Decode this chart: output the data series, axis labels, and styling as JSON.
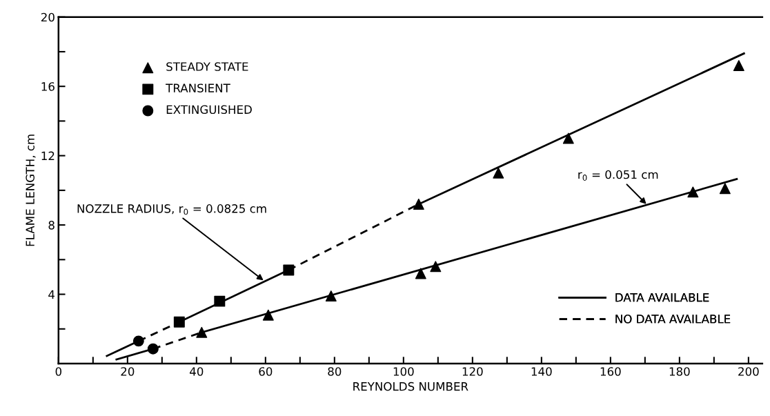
{
  "chart_data": {
    "type": "scatter",
    "xlabel": "REYNOLDS NUMBER",
    "ylabel": "FLAME LENGTH, cm",
    "xlim": [
      0,
      204
    ],
    "ylim": [
      0,
      20
    ],
    "xticks": [
      0,
      {
        "value": 10,
        "label": null
      },
      20,
      {
        "value": 30,
        "label": null
      },
      40,
      {
        "value": 50,
        "label": null
      },
      60,
      {
        "value": 70,
        "label": null
      },
      80,
      {
        "value": 90,
        "label": null
      },
      100,
      {
        "value": 110,
        "label": null
      },
      120,
      {
        "value": 130,
        "label": null
      },
      140,
      {
        "value": 150,
        "label": null
      },
      160,
      {
        "value": 170,
        "label": null
      },
      180,
      {
        "value": 190,
        "label": null
      },
      200
    ],
    "yticks": [
      {
        "value": 2,
        "label": null
      },
      4,
      {
        "value": 6,
        "label": null
      },
      8,
      {
        "value": 10,
        "label": null
      },
      12,
      {
        "value": 14,
        "label": null
      },
      16,
      {
        "value": 18,
        "label": null
      },
      20
    ],
    "grid": false,
    "legend": [
      "top left",
      "bottom right"
    ],
    "series": [
      {
        "name": "STEADY STATE",
        "marker": "triangle",
        "color": "#000000",
        "x": [
          104.4,
          127.5,
          147.8,
          197.2,
          41.5,
          60.8,
          79,
          105,
          109.3,
          183.9,
          193.2
        ],
        "values": [
          9.2,
          11.0,
          13.0,
          17.2,
          1.8,
          2.8,
          3.9,
          5.2,
          5.6,
          9.9,
          10.1
        ]
      },
      {
        "name": "TRANSIENT",
        "marker": "square",
        "color": "#000000",
        "x": [
          35,
          46.7,
          66.7
        ],
        "values": [
          2.4,
          3.6,
          5.4
        ]
      },
      {
        "name": "EXTINGUISHED",
        "marker": "circle",
        "color": "#000000",
        "x": [
          23.2,
          27.4
        ],
        "values": [
          1.3,
          0.85
        ]
      },
      {
        "name": "DATA AVAILABLE",
        "type": "line",
        "line_style": "solid",
        "color": "#000000",
        "x": [
          14,
          23.2
        ],
        "values": [
          0.44,
          1.3
        ]
      },
      {
        "type": "line",
        "line_style": "dashed",
        "color": "#000000",
        "x": [
          23.2,
          35
        ],
        "values": [
          1.3,
          2.4
        ]
      },
      {
        "type": "line",
        "line_style": "solid",
        "color": "#000000",
        "x": [
          35,
          66.7
        ],
        "values": [
          2.4,
          5.4
        ]
      },
      {
        "name": "NO DATA AVAILABLE",
        "type": "line",
        "line_style": "dashed",
        "color": "#000000",
        "x": [
          66.7,
          104.4
        ],
        "values": [
          5.4,
          9.2
        ]
      },
      {
        "type": "line",
        "line_style": "solid",
        "color": "#000000",
        "x": [
          104.4,
          198.7
        ],
        "values": [
          9.2,
          17.9
        ]
      },
      {
        "type": "line",
        "line_style": "solid",
        "color": "#000000",
        "x": [
          16.8,
          27.4
        ],
        "values": [
          0.24,
          0.85
        ]
      },
      {
        "type": "line",
        "line_style": "dashed",
        "color": "#000000",
        "x": [
          27.4,
          41.5
        ],
        "values": [
          0.85,
          1.8
        ]
      },
      {
        "type": "line",
        "line_style": "solid",
        "color": "#000000",
        "x": [
          41.5,
          196.6
        ],
        "values": [
          1.8,
          10.65
        ]
      }
    ],
    "annotations": [
      {
        "text": "NOZZLE RADIUS, r$_{0}$ = 0.0825 cm",
        "x": 59.4,
        "y": 4.8
      },
      {
        "text": "r$_{0}$ = 0.051 cm",
        "x": 170.4,
        "y": 9.2
      }
    ]
  }
}
